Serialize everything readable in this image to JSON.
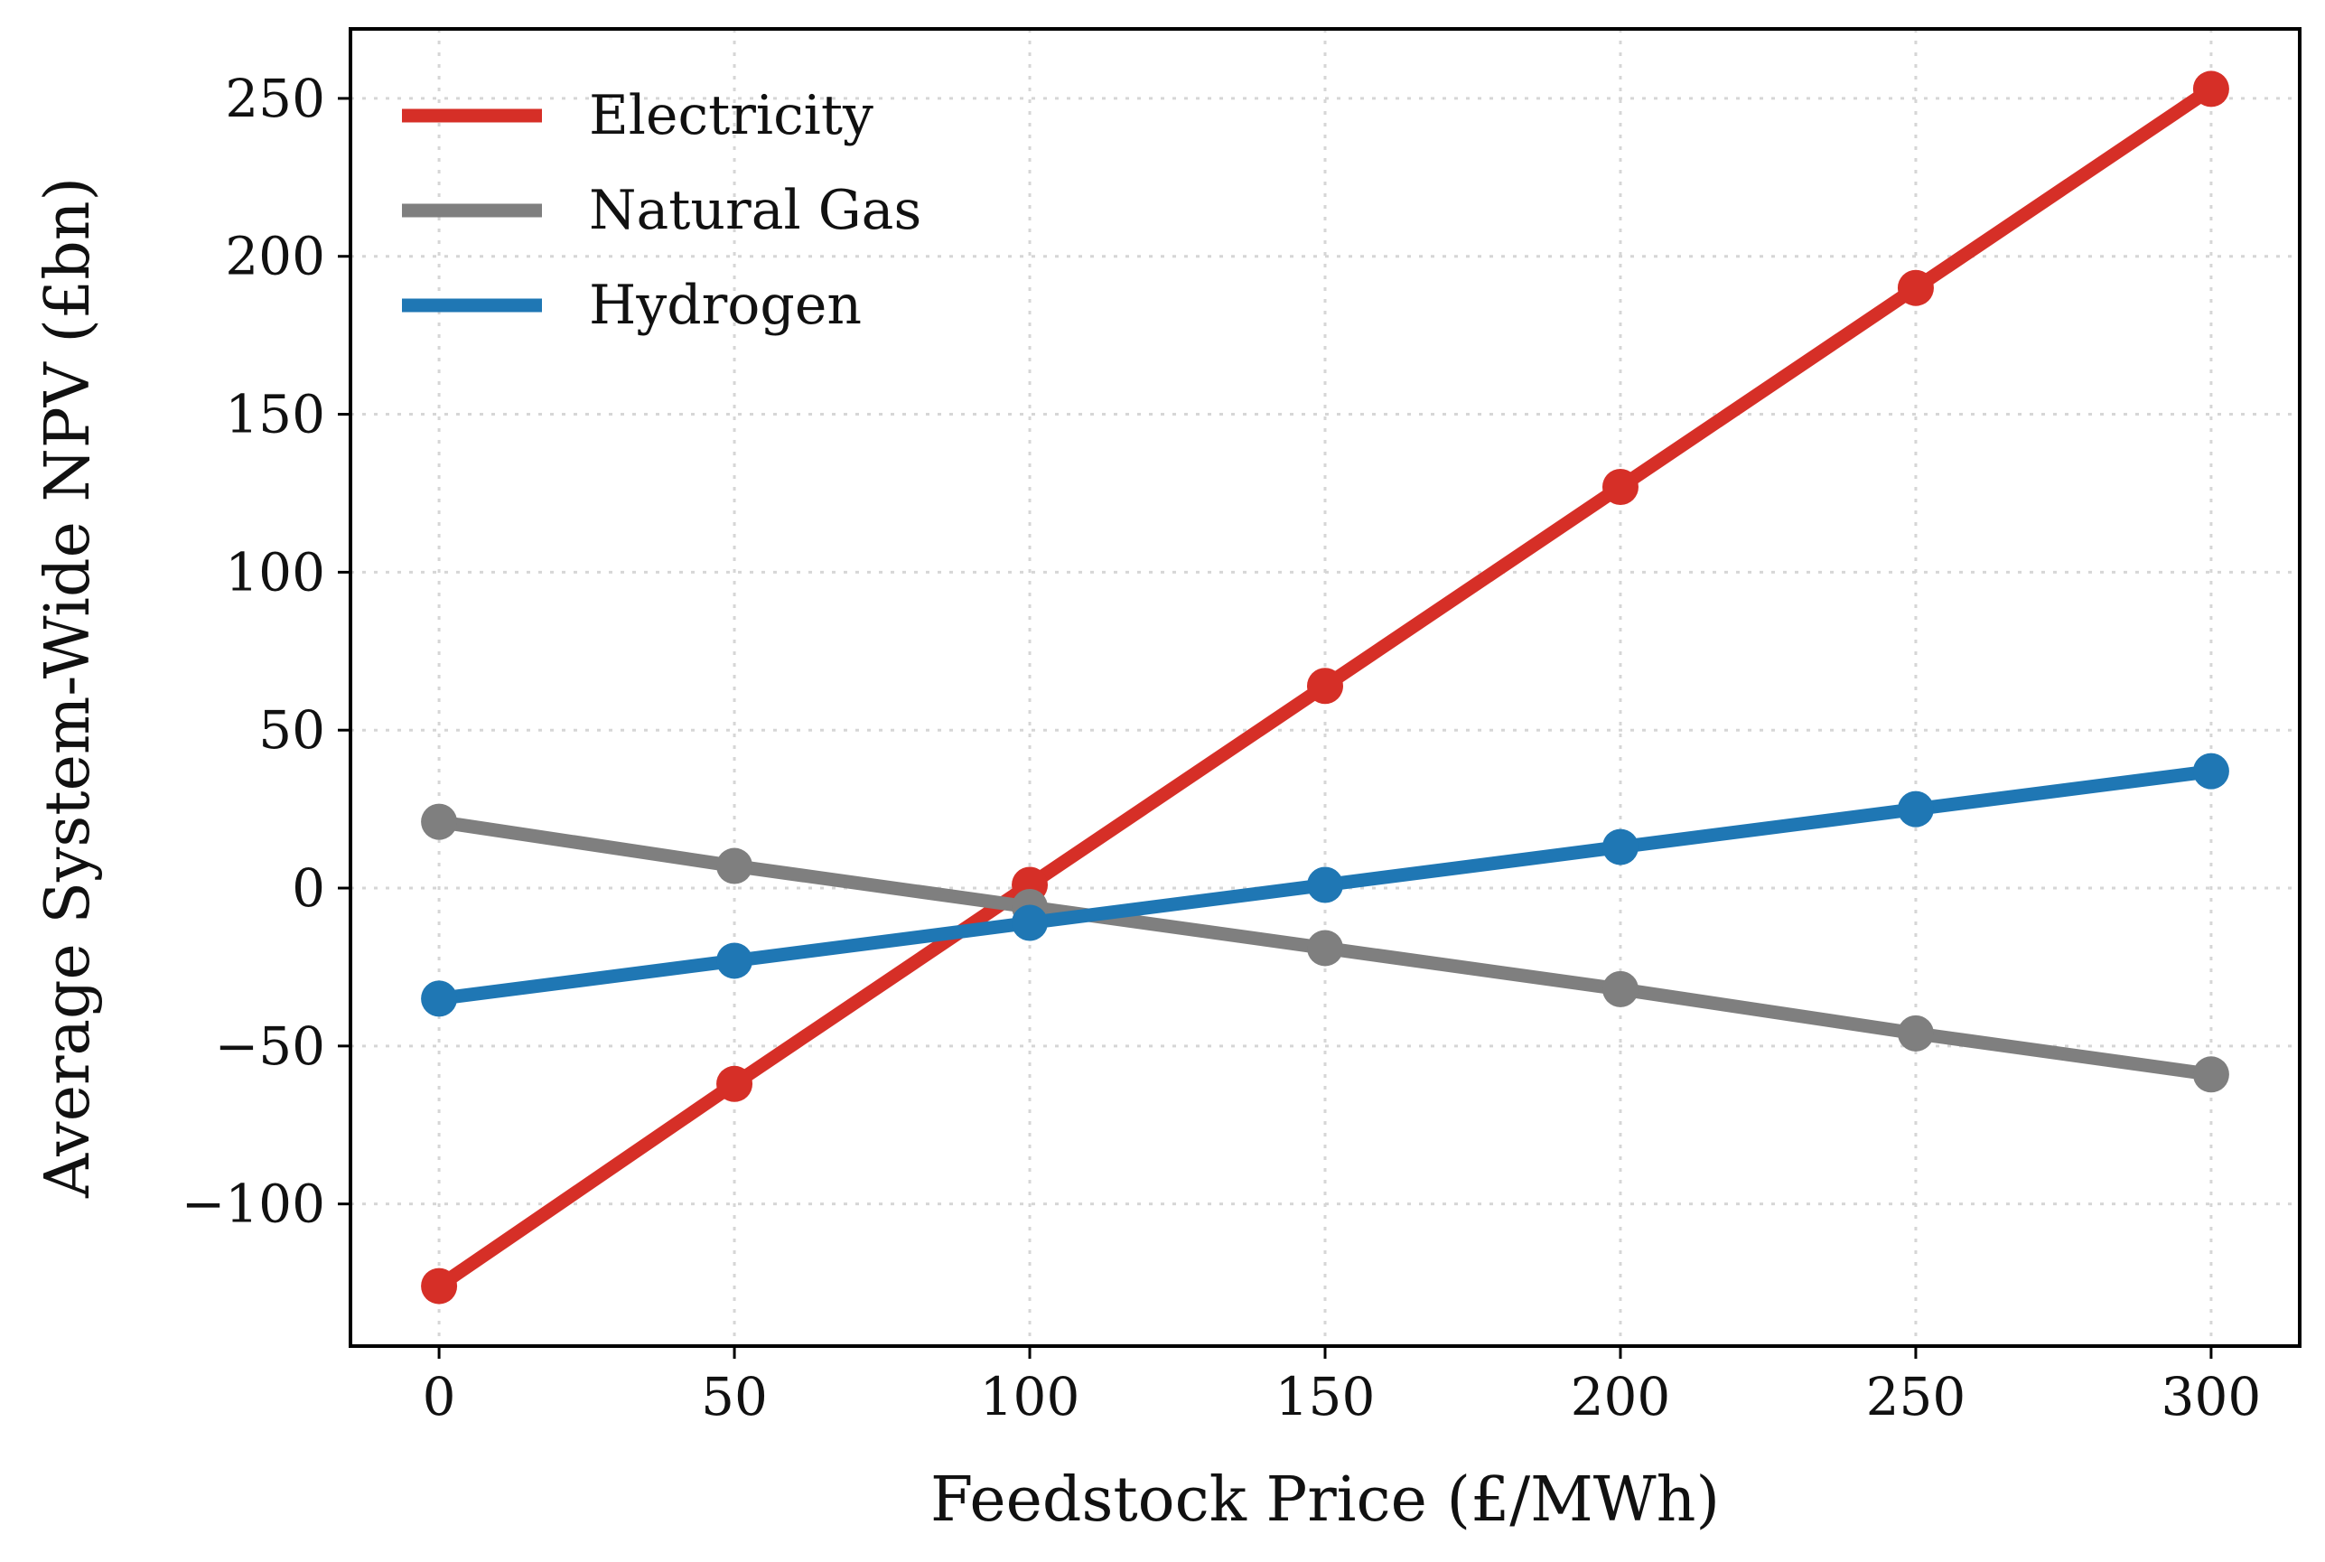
{
  "chart_data": {
    "type": "line",
    "xlabel": "Feedstock Price (£/MWh)",
    "ylabel": "Average System-Wide NPV (£bn)",
    "x": [
      0,
      50,
      100,
      150,
      200,
      250,
      300
    ],
    "xlim": [
      -15,
      315
    ],
    "ylim": [
      -145,
      272
    ],
    "xticks": [
      0,
      50,
      100,
      150,
      200,
      250,
      300
    ],
    "yticks": [
      -100,
      -50,
      0,
      50,
      100,
      150,
      200,
      250
    ],
    "ytick_labels": [
      "−100",
      "−50",
      "0",
      "50",
      "100",
      "150",
      "200",
      "250"
    ],
    "grid": true,
    "legend_position": "top-left",
    "series": [
      {
        "name": "Electricity",
        "color": "#d62f27",
        "values": [
          -126,
          -62,
          1,
          64,
          127,
          190,
          253
        ]
      },
      {
        "name": "Natural Gas",
        "color": "#7f7f7f",
        "values": [
          21,
          7,
          -6,
          -19,
          -32,
          -46,
          -59
        ]
      },
      {
        "name": "Hydrogen",
        "color": "#1f77b4",
        "values": [
          -35,
          -23,
          -11,
          1,
          13,
          25,
          37
        ]
      }
    ]
  }
}
